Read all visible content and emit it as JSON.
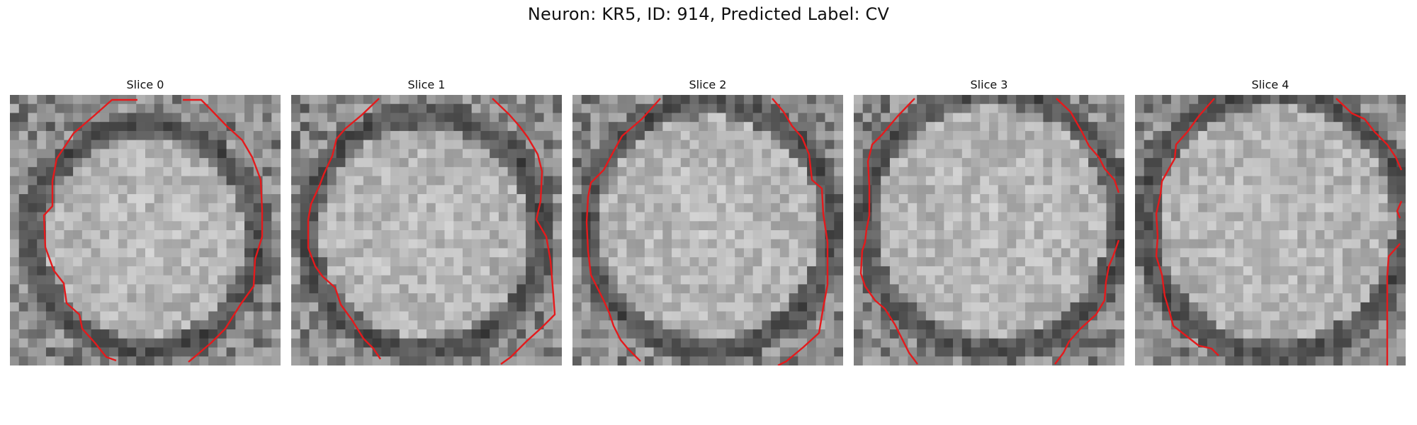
{
  "figure": {
    "suptitle": "Neuron: KR5, ID: 914, Predicted Label: CV"
  },
  "colors": {
    "contour": "#e41a1c"
  },
  "slices": [
    {
      "title": "Slice 0"
    },
    {
      "title": "Slice 1"
    },
    {
      "title": "Slice 2"
    },
    {
      "title": "Slice 3"
    },
    {
      "title": "Slice 4"
    }
  ]
}
